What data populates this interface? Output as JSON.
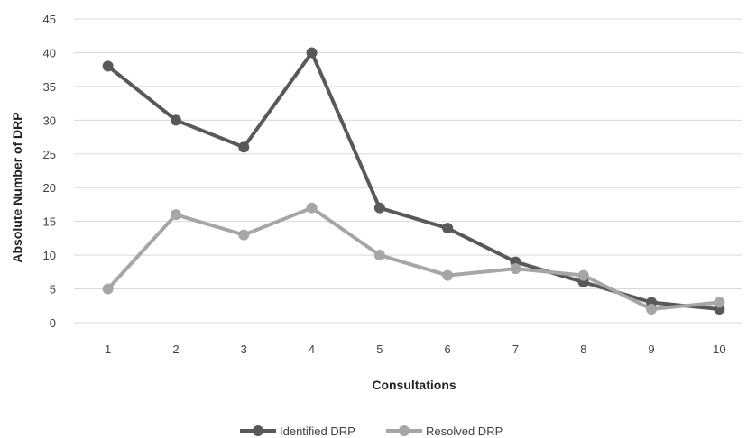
{
  "chart_data": {
    "type": "line",
    "categories": [
      "1",
      "2",
      "3",
      "4",
      "5",
      "6",
      "7",
      "8",
      "9",
      "10"
    ],
    "series": [
      {
        "name": "Identified DRP",
        "values": [
          38,
          30,
          26,
          40,
          17,
          14,
          9,
          6,
          3,
          2
        ],
        "color": "#595959"
      },
      {
        "name": "Resolved DRP",
        "values": [
          5,
          16,
          13,
          17,
          10,
          7,
          8,
          7,
          2,
          3
        ],
        "color": "#a6a6a6"
      }
    ],
    "xlabel": "Consultations",
    "ylabel": "Absolute Number of DRP",
    "ylim": [
      0,
      45
    ],
    "yticks": [
      "0",
      "5",
      "10",
      "15",
      "20",
      "25",
      "30",
      "35",
      "40",
      "45"
    ],
    "grid": true,
    "legend_position": "bottom",
    "gridline_color": "#d9d9d9"
  }
}
